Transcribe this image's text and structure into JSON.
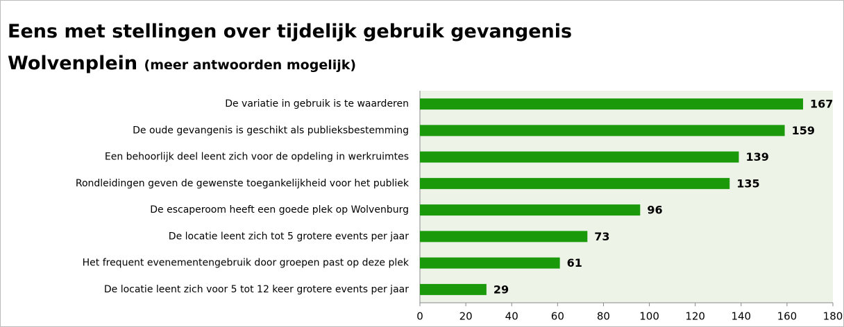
{
  "chart_data": {
    "type": "bar",
    "orientation": "horizontal",
    "title": "Eens met stellingen over tijdelijk gebruik gevangenis Wolvenplein",
    "subtitle": "(meer antwoorden mogelijk)",
    "categories": [
      "De variatie in gebruik is te waarderen",
      "De oude gevangenis is geschikt als publieksbestemming",
      "Een behoorlijk deel leent zich voor de opdeling in werkruimtes",
      "Rondleidingen geven de gewenste toegankelijkheid voor het publiek",
      "De escaperoom heeft een goede plek op Wolvenburg",
      "De locatie leent zich tot 5 grotere events per jaar",
      "Het frequent evenementengebruik door groepen past op deze plek",
      "De locatie leent zich voor 5 tot 12 keer grotere events per jaar"
    ],
    "values": [
      167,
      159,
      139,
      135,
      96,
      73,
      61,
      29
    ],
    "color": "#1a9a0a",
    "xlim": [
      0,
      180
    ],
    "xticks": [
      0,
      20,
      40,
      60,
      80,
      100,
      120,
      140,
      160,
      180
    ],
    "grid": false
  }
}
